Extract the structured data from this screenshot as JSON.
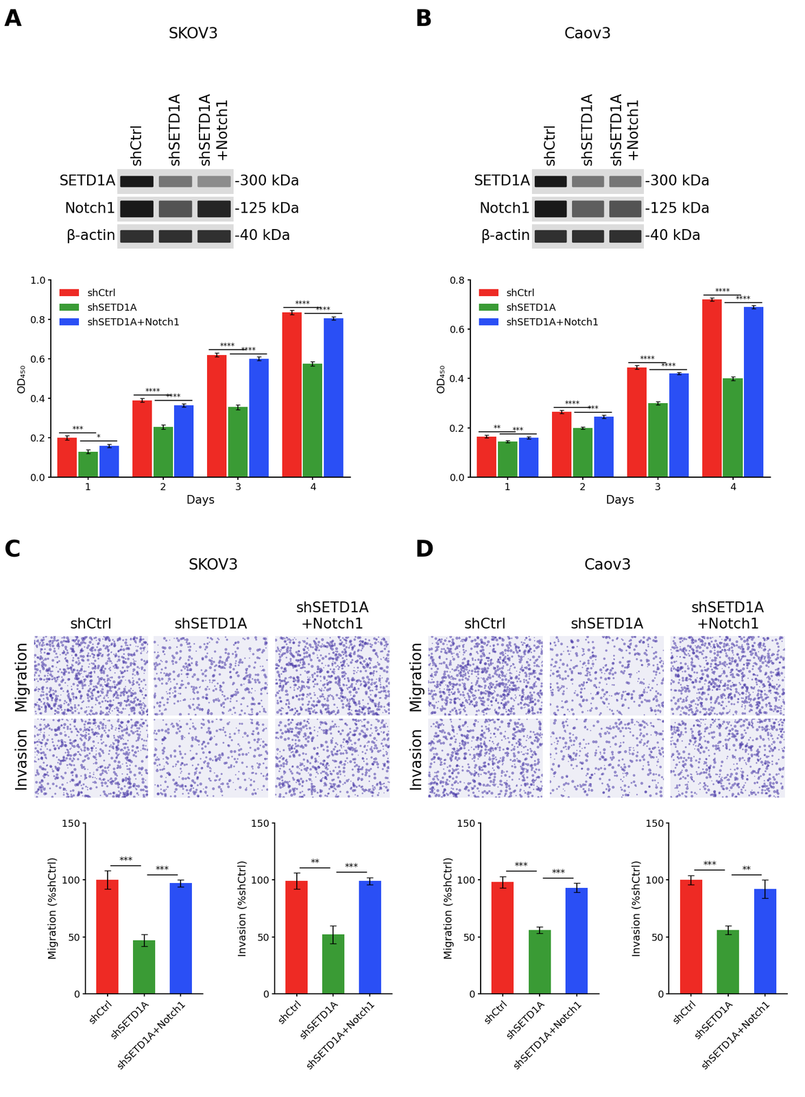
{
  "panels": [
    {
      "letter": "A",
      "title": "SKOV3",
      "blot": {
        "lanes": [
          "shCtrl",
          "shSETD1A",
          "shSETD1A\n+Notch1"
        ],
        "bands": [
          {
            "protein": "SETD1A",
            "size": "-300 kDa"
          },
          {
            "protein": "Notch1",
            "size": "-125 kDa"
          },
          {
            "protein": "β-actin",
            "size": "-40 kDa"
          }
        ]
      }
    },
    {
      "letter": "B",
      "title": "Caov3",
      "blot": {
        "lanes": [
          "shCtrl",
          "shSETD1A",
          "shSETD1A\n+Notch1"
        ],
        "bands": [
          {
            "protein": "SETD1A",
            "size": "-300 kDa"
          },
          {
            "protein": "Notch1",
            "size": "-125 kDa"
          },
          {
            "protein": "β-actin",
            "size": "-40 kDa"
          }
        ]
      }
    },
    {
      "letter": "C",
      "title": "SKOV3",
      "images": {
        "columns": [
          "shCtrl",
          "shSETD1A",
          "shSETD1A\n+Notch1"
        ],
        "rows": [
          "Migration",
          "Invasion"
        ]
      }
    },
    {
      "letter": "D",
      "title": "Caov3",
      "images": {
        "columns": [
          "shCtrl",
          "shSETD1A",
          "shSETD1A\n+Notch1"
        ],
        "rows": [
          "Migration",
          "Invasion"
        ]
      }
    }
  ],
  "chart_data": [
    {
      "type": "bar",
      "x_label": "Days",
      "y_label": "OD₄₅₀",
      "categories": [
        "1",
        "2",
        "3",
        "4"
      ],
      "series": [
        {
          "name": "shCtrl",
          "color": "#ee2a24",
          "values": [
            0.2,
            0.39,
            0.62,
            0.835
          ],
          "errors": [
            0.01,
            0.01,
            0.01,
            0.01
          ]
        },
        {
          "name": "shSETD1A",
          "color": "#3a9b35",
          "values": [
            0.13,
            0.255,
            0.355,
            0.575
          ],
          "errors": [
            0.01,
            0.01,
            0.012,
            0.01
          ]
        },
        {
          "name": "shSETD1A+Notch1",
          "color": "#2a4ff5",
          "values": [
            0.16,
            0.365,
            0.6,
            0.805
          ],
          "errors": [
            0.008,
            0.008,
            0.01,
            0.008
          ]
        }
      ],
      "significance": [
        [
          "***",
          "*"
        ],
        [
          "****",
          "****"
        ],
        [
          "****",
          "****"
        ],
        [
          "****",
          "****"
        ]
      ],
      "ylim": [
        0.0,
        1.0
      ],
      "yticks": [
        0.0,
        0.2,
        0.4,
        0.6,
        0.8,
        1.0
      ],
      "legend": "upper left"
    },
    {
      "type": "bar",
      "x_label": "Days",
      "y_label": "OD₄₅₀",
      "categories": [
        "1",
        "2",
        "3",
        "4"
      ],
      "series": [
        {
          "name": "shCtrl",
          "color": "#ee2a24",
          "values": [
            0.165,
            0.265,
            0.445,
            0.72
          ],
          "errors": [
            0.006,
            0.006,
            0.008,
            0.006
          ]
        },
        {
          "name": "shSETD1A",
          "color": "#3a9b35",
          "values": [
            0.145,
            0.2,
            0.3,
            0.4
          ],
          "errors": [
            0.004,
            0.004,
            0.006,
            0.008
          ]
        },
        {
          "name": "shSETD1A+Notch1",
          "color": "#2a4ff5",
          "values": [
            0.16,
            0.245,
            0.42,
            0.69
          ],
          "errors": [
            0.004,
            0.006,
            0.004,
            0.006
          ]
        }
      ],
      "significance": [
        [
          "**",
          "***"
        ],
        [
          "****",
          "***"
        ],
        [
          "****",
          "****"
        ],
        [
          "****",
          "****"
        ]
      ],
      "ylim": [
        0.0,
        0.8
      ],
      "yticks": [
        0.0,
        0.2,
        0.4,
        0.6,
        0.8
      ],
      "legend": "upper left"
    },
    {
      "type": "bar",
      "y_label": "Migration (%shCtrl)",
      "categories": [
        "shCtrl",
        "shSETD1A",
        "shSETD1A+Notch1"
      ],
      "values": [
        100,
        47,
        97
      ],
      "errors": [
        8,
        5,
        3
      ],
      "colors": [
        "#ee2a24",
        "#3a9b35",
        "#2a4ff5"
      ],
      "significance": [
        "***",
        "***"
      ],
      "ylim": [
        0,
        150
      ],
      "yticks": [
        0,
        50,
        100,
        150
      ]
    },
    {
      "type": "bar",
      "y_label": "Invasion (%shCtrl)",
      "categories": [
        "shCtrl",
        "shSETD1A",
        "shSETD1A+Notch1"
      ],
      "values": [
        99,
        52,
        99
      ],
      "errors": [
        7,
        8,
        3
      ],
      "colors": [
        "#ee2a24",
        "#3a9b35",
        "#2a4ff5"
      ],
      "significance": [
        "**",
        "***"
      ],
      "ylim": [
        0,
        150
      ],
      "yticks": [
        0,
        50,
        100,
        150
      ]
    },
    {
      "type": "bar",
      "y_label": "Migration (%shCtrl)",
      "categories": [
        "shCtrl",
        "shSETD1A",
        "shSETD1A+Notch1"
      ],
      "values": [
        98,
        56,
        93
      ],
      "errors": [
        5,
        3,
        4
      ],
      "colors": [
        "#ee2a24",
        "#3a9b35",
        "#2a4ff5"
      ],
      "significance": [
        "***",
        "***"
      ],
      "ylim": [
        0,
        150
      ],
      "yticks": [
        0,
        50,
        100,
        150
      ]
    },
    {
      "type": "bar",
      "y_label": "Invasion (%shCtrl)",
      "categories": [
        "shCtrl",
        "shSETD1A",
        "shSETD1A+Notch1"
      ],
      "values": [
        100,
        56,
        92
      ],
      "errors": [
        4,
        4,
        8
      ],
      "colors": [
        "#ee2a24",
        "#3a9b35",
        "#2a4ff5"
      ],
      "significance": [
        "***",
        "**"
      ],
      "ylim": [
        0,
        150
      ],
      "yticks": [
        0,
        50,
        100,
        150
      ]
    }
  ]
}
